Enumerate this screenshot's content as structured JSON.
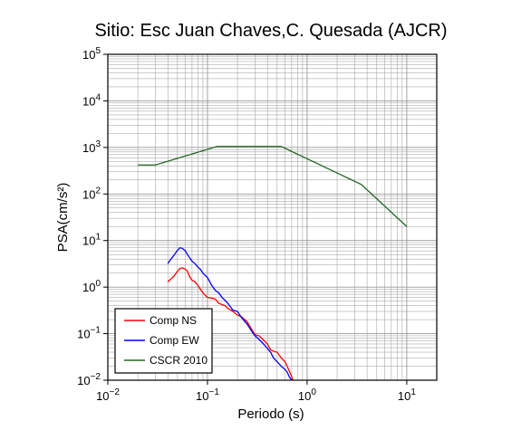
{
  "chart_data": {
    "type": "line",
    "title": "Sitio: Esc Juan Chaves,C. Quesada (AJCR)",
    "xlabel": "Periodo (s)",
    "ylabel": "PSA(cm/s²)",
    "xscale": "log",
    "yscale": "log",
    "xlim": [
      0.01,
      20
    ],
    "ylim": [
      0.01,
      100000
    ],
    "grid": true,
    "legend_position": "bottom-left",
    "x_ticks": [
      {
        "value": 0.01,
        "base": "10",
        "exp": "−2"
      },
      {
        "value": 0.1,
        "base": "10",
        "exp": "−1"
      },
      {
        "value": 1,
        "base": "10",
        "exp": "0"
      },
      {
        "value": 10,
        "base": "10",
        "exp": "1"
      }
    ],
    "y_ticks": [
      {
        "value": 0.01,
        "base": "10",
        "exp": "−2"
      },
      {
        "value": 0.1,
        "base": "10",
        "exp": "−1"
      },
      {
        "value": 1,
        "base": "10",
        "exp": "0"
      },
      {
        "value": 10,
        "base": "10",
        "exp": "1"
      },
      {
        "value": 100,
        "base": "10",
        "exp": "2"
      },
      {
        "value": 1000,
        "base": "10",
        "exp": "3"
      },
      {
        "value": 10000,
        "base": "10",
        "exp": "4"
      },
      {
        "value": 100000,
        "base": "10",
        "exp": "5"
      }
    ],
    "series": [
      {
        "name": "Comp NS",
        "color": "#ff0000",
        "points": [
          [
            0.04,
            1.3
          ],
          [
            0.043,
            1.5
          ],
          [
            0.046,
            1.7
          ],
          [
            0.05,
            2.2
          ],
          [
            0.053,
            2.5
          ],
          [
            0.056,
            2.6
          ],
          [
            0.06,
            2.4
          ],
          [
            0.063,
            2.2
          ],
          [
            0.066,
            1.7
          ],
          [
            0.07,
            1.4
          ],
          [
            0.075,
            1.3
          ],
          [
            0.08,
            1.1
          ],
          [
            0.085,
            0.9
          ],
          [
            0.09,
            0.75
          ],
          [
            0.1,
            0.6
          ],
          [
            0.11,
            0.58
          ],
          [
            0.12,
            0.55
          ],
          [
            0.13,
            0.45
          ],
          [
            0.14,
            0.42
          ],
          [
            0.15,
            0.4
          ],
          [
            0.16,
            0.35
          ],
          [
            0.18,
            0.3
          ],
          [
            0.2,
            0.25
          ],
          [
            0.22,
            0.23
          ],
          [
            0.25,
            0.18
          ],
          [
            0.28,
            0.12
          ],
          [
            0.3,
            0.095
          ],
          [
            0.33,
            0.09
          ],
          [
            0.36,
            0.075
          ],
          [
            0.4,
            0.06
          ],
          [
            0.43,
            0.045
          ],
          [
            0.46,
            0.042
          ],
          [
            0.5,
            0.04
          ],
          [
            0.55,
            0.03
          ],
          [
            0.6,
            0.025
          ],
          [
            0.63,
            0.02
          ],
          [
            0.66,
            0.016
          ],
          [
            0.7,
            0.012
          ],
          [
            0.72,
            0.01
          ]
        ]
      },
      {
        "name": "Comp EW",
        "color": "#0000ff",
        "points": [
          [
            0.04,
            3.2
          ],
          [
            0.043,
            4.0
          ],
          [
            0.046,
            4.8
          ],
          [
            0.05,
            6.2
          ],
          [
            0.053,
            7.0
          ],
          [
            0.056,
            6.8
          ],
          [
            0.06,
            6.0
          ],
          [
            0.063,
            5.0
          ],
          [
            0.066,
            4.3
          ],
          [
            0.07,
            3.6
          ],
          [
            0.075,
            3.2
          ],
          [
            0.08,
            2.7
          ],
          [
            0.085,
            2.4
          ],
          [
            0.09,
            2.0
          ],
          [
            0.1,
            1.6
          ],
          [
            0.11,
            1.1
          ],
          [
            0.12,
            0.85
          ],
          [
            0.13,
            0.75
          ],
          [
            0.14,
            0.6
          ],
          [
            0.15,
            0.52
          ],
          [
            0.16,
            0.45
          ],
          [
            0.18,
            0.32
          ],
          [
            0.2,
            0.3
          ],
          [
            0.22,
            0.22
          ],
          [
            0.25,
            0.16
          ],
          [
            0.28,
            0.11
          ],
          [
            0.3,
            0.09
          ],
          [
            0.33,
            0.075
          ],
          [
            0.36,
            0.062
          ],
          [
            0.4,
            0.048
          ],
          [
            0.43,
            0.04
          ],
          [
            0.46,
            0.03
          ],
          [
            0.5,
            0.025
          ],
          [
            0.55,
            0.02
          ],
          [
            0.6,
            0.017
          ],
          [
            0.63,
            0.015
          ],
          [
            0.66,
            0.012
          ],
          [
            0.7,
            0.01
          ]
        ]
      },
      {
        "name": "CSCR 2010",
        "color": "#226622",
        "points": [
          [
            0.02,
            420
          ],
          [
            0.03,
            420
          ],
          [
            0.125,
            1050
          ],
          [
            0.55,
            1050
          ],
          [
            3.5,
            160
          ],
          [
            10,
            20
          ]
        ]
      }
    ]
  }
}
